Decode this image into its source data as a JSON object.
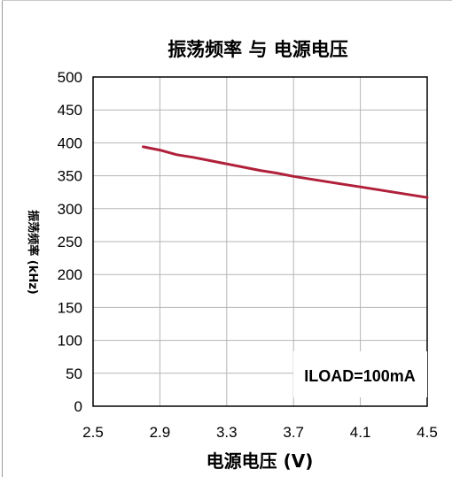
{
  "chart_data": {
    "type": "line",
    "title": "振荡频率 与 电源电压",
    "xlabel": "电源电压 (V)",
    "ylabel": "振荡频率 (kHz)",
    "annotation": "ILOAD=100mA",
    "x_ticks": [
      "2.5",
      "2.9",
      "3.3",
      "3.7",
      "4.1",
      "4.5"
    ],
    "y_ticks": [
      "0",
      "50",
      "100",
      "150",
      "200",
      "250",
      "300",
      "350",
      "400",
      "450",
      "500"
    ],
    "xlim": [
      2.5,
      4.5
    ],
    "ylim": [
      0,
      500
    ],
    "grid": true,
    "series": [
      {
        "color": "#b0203a",
        "x": [
          2.8,
          2.9,
          3.0,
          3.1,
          3.2,
          3.3,
          3.4,
          3.5,
          3.6,
          3.7,
          3.8,
          3.9,
          4.0,
          4.1,
          4.2,
          4.3,
          4.4,
          4.5
        ],
        "y": [
          394,
          389,
          382,
          378,
          373,
          368,
          363,
          358,
          354,
          349,
          345,
          341,
          337,
          333,
          329,
          325,
          321,
          317
        ]
      }
    ]
  }
}
